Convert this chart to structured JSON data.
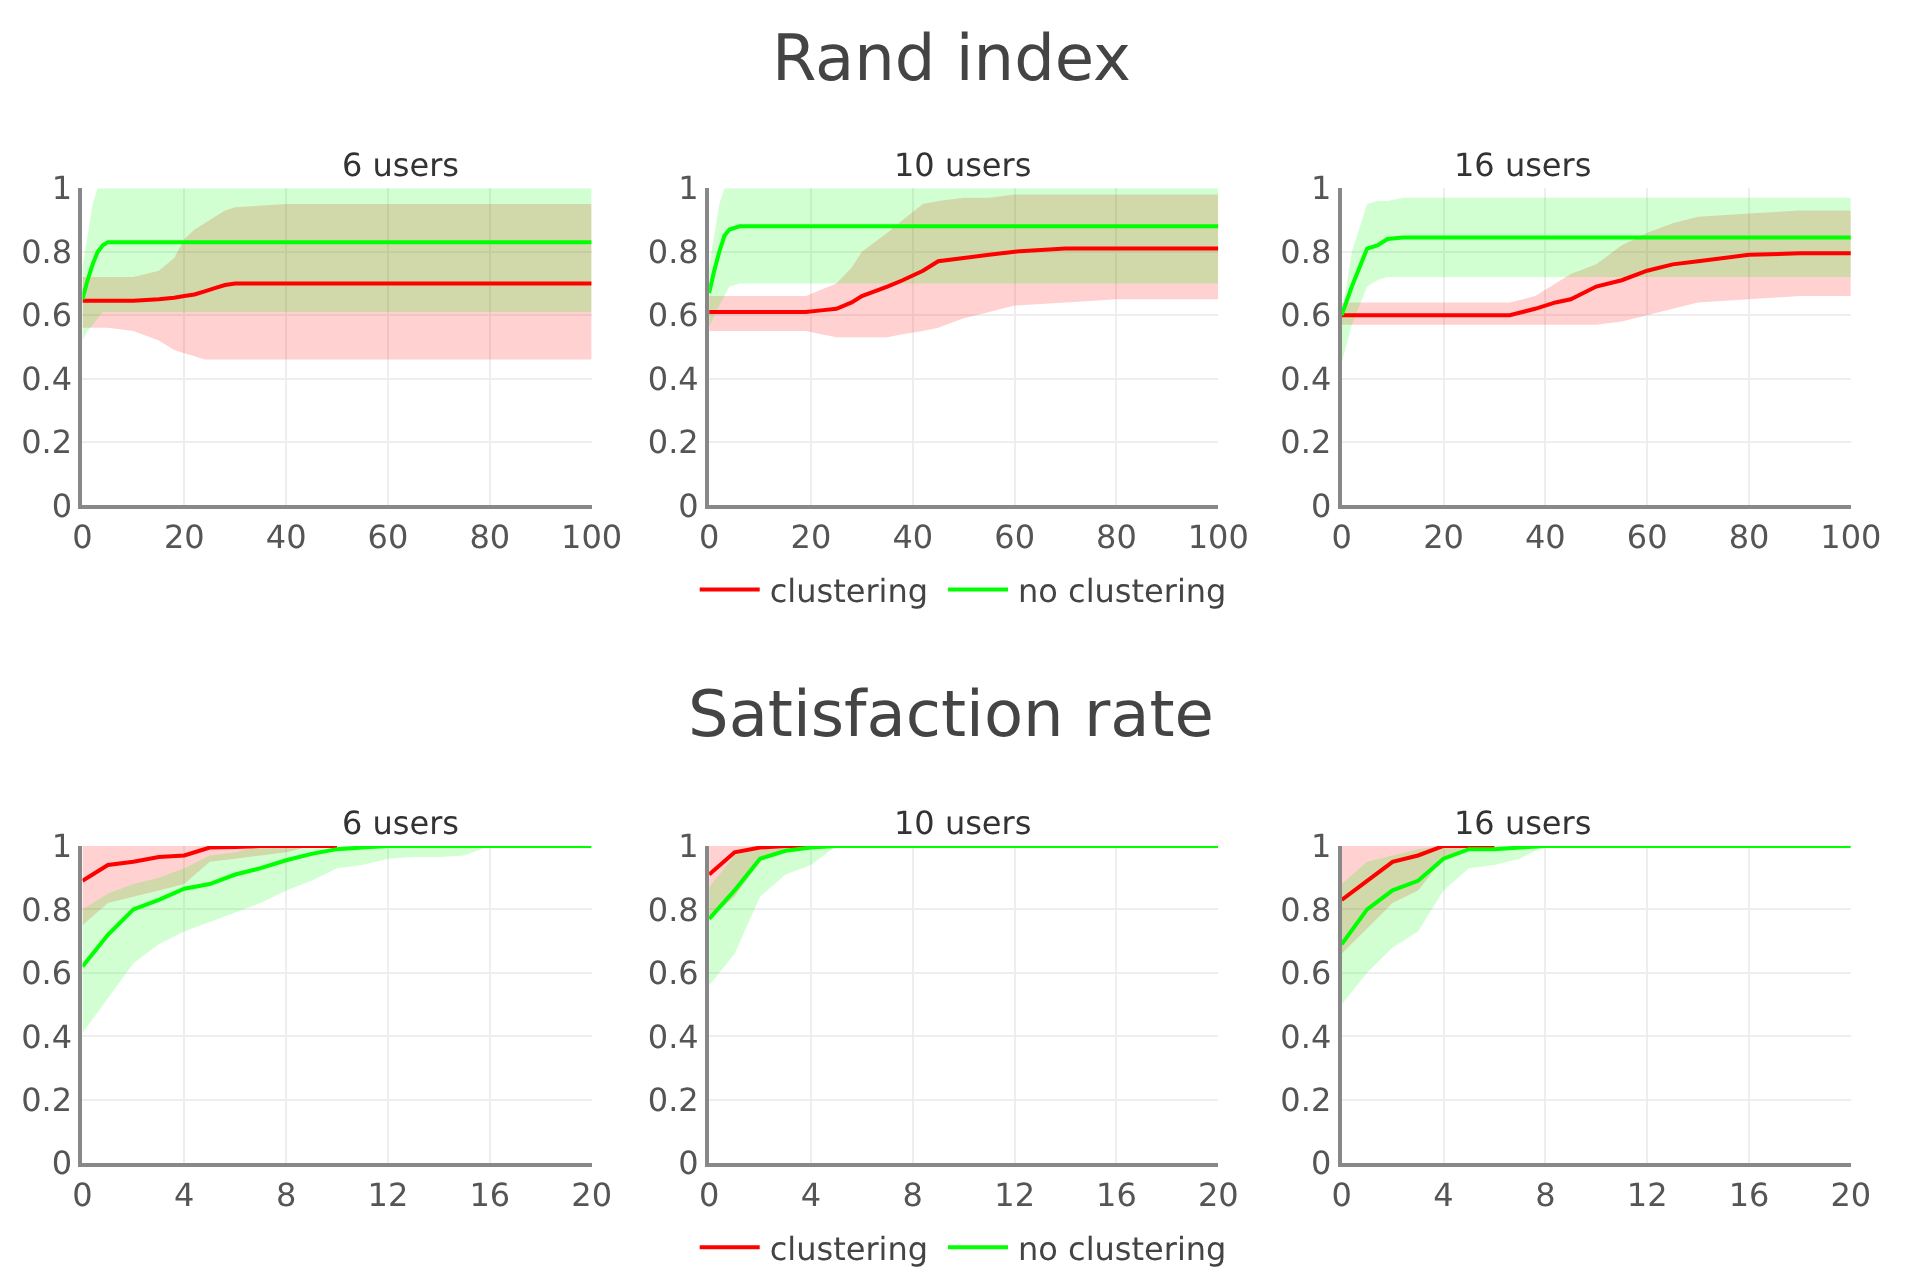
{
  "chart_data": [
    {
      "type": "line",
      "title": "6 users",
      "annotations": [
        "Rand index"
      ],
      "xlim": [
        0,
        100
      ],
      "xticks": [
        0,
        20,
        40,
        60,
        80,
        100
      ],
      "ylim": [
        0,
        1
      ],
      "yticks": [
        0,
        0.2,
        0.4,
        0.6,
        0.8,
        1
      ],
      "grid": true,
      "series": [
        {
          "color": "#ff0000",
          "x": [
            0,
            5,
            10,
            15,
            18,
            20,
            22,
            24,
            26,
            28,
            30,
            40,
            100
          ],
          "values": [
            0.645,
            0.645,
            0.645,
            0.65,
            0.655,
            0.66,
            0.665,
            0.675,
            0.685,
            0.695,
            0.7,
            0.7,
            0.7
          ],
          "lower": [
            0.56,
            0.56,
            0.55,
            0.52,
            0.49,
            0.48,
            0.47,
            0.46,
            0.46,
            0.46,
            0.46,
            0.46,
            0.46
          ],
          "upper": [
            0.72,
            0.72,
            0.72,
            0.74,
            0.78,
            0.84,
            0.87,
            0.89,
            0.91,
            0.93,
            0.94,
            0.95,
            0.95
          ]
        },
        {
          "color": "#00ff00",
          "x": [
            0,
            1,
            2,
            3,
            4,
            5,
            10,
            20,
            100
          ],
          "values": [
            0.65,
            0.71,
            0.76,
            0.8,
            0.82,
            0.83,
            0.83,
            0.83,
            0.83
          ],
          "lower": [
            0.52,
            0.55,
            0.57,
            0.59,
            0.61,
            0.61,
            0.61,
            0.61,
            0.61
          ],
          "upper": [
            0.75,
            0.85,
            0.95,
            1,
            1,
            1,
            1,
            1,
            1
          ]
        }
      ]
    },
    {
      "type": "line",
      "title": "10 users",
      "legend": "bottom",
      "xlim": [
        0,
        100
      ],
      "xticks": [
        0,
        20,
        40,
        60,
        80,
        100
      ],
      "ylim": [
        0,
        1
      ],
      "yticks": [
        0,
        0.2,
        0.4,
        0.6,
        0.8,
        1
      ],
      "grid": true,
      "series": [
        {
          "name": "clustering",
          "color": "#ff0000",
          "x": [
            0,
            10,
            19,
            22,
            25,
            28,
            30,
            35,
            38,
            42,
            45,
            50,
            55,
            60,
            70,
            80,
            100
          ],
          "values": [
            0.61,
            0.61,
            0.61,
            0.615,
            0.62,
            0.64,
            0.66,
            0.69,
            0.71,
            0.74,
            0.77,
            0.78,
            0.79,
            0.8,
            0.81,
            0.81,
            0.81
          ],
          "lower": [
            0.55,
            0.55,
            0.55,
            0.54,
            0.53,
            0.53,
            0.53,
            0.53,
            0.54,
            0.55,
            0.56,
            0.59,
            0.61,
            0.63,
            0.64,
            0.65,
            0.65
          ],
          "upper": [
            0.66,
            0.66,
            0.66,
            0.68,
            0.7,
            0.75,
            0.8,
            0.86,
            0.9,
            0.95,
            0.96,
            0.97,
            0.97,
            0.98,
            0.98,
            0.98,
            0.98
          ]
        },
        {
          "name": "no clustering",
          "color": "#00ff00",
          "x": [
            0,
            1,
            2,
            3,
            4,
            6,
            10,
            100
          ],
          "values": [
            0.67,
            0.74,
            0.8,
            0.85,
            0.87,
            0.88,
            0.88,
            0.88
          ],
          "lower": [
            0.56,
            0.6,
            0.63,
            0.66,
            0.69,
            0.7,
            0.7,
            0.7
          ],
          "upper": [
            0.75,
            0.85,
            0.95,
            1,
            1,
            1,
            1,
            1
          ]
        }
      ]
    },
    {
      "type": "line",
      "title": "16 users",
      "xlim": [
        0,
        100
      ],
      "xticks": [
        0,
        20,
        40,
        60,
        80,
        100
      ],
      "ylim": [
        0,
        1
      ],
      "yticks": [
        0,
        0.2,
        0.4,
        0.6,
        0.8,
        1
      ],
      "grid": true,
      "series": [
        {
          "color": "#ff0000",
          "x": [
            0,
            20,
            33,
            38,
            42,
            45,
            50,
            55,
            60,
            65,
            70,
            80,
            90,
            100
          ],
          "values": [
            0.6,
            0.6,
            0.6,
            0.62,
            0.64,
            0.65,
            0.69,
            0.71,
            0.74,
            0.76,
            0.77,
            0.79,
            0.795,
            0.795
          ],
          "lower": [
            0.57,
            0.57,
            0.57,
            0.57,
            0.57,
            0.57,
            0.57,
            0.58,
            0.6,
            0.62,
            0.64,
            0.65,
            0.66,
            0.66
          ],
          "upper": [
            0.64,
            0.64,
            0.64,
            0.66,
            0.7,
            0.73,
            0.76,
            0.82,
            0.86,
            0.89,
            0.91,
            0.92,
            0.93,
            0.93
          ]
        },
        {
          "color": "#00ff00",
          "x": [
            0,
            2,
            4,
            5,
            7,
            9,
            12,
            100
          ],
          "values": [
            0.6,
            0.69,
            0.77,
            0.81,
            0.82,
            0.84,
            0.845,
            0.845
          ],
          "lower": [
            0.45,
            0.57,
            0.65,
            0.69,
            0.71,
            0.72,
            0.72,
            0.72
          ],
          "upper": [
            0.6,
            0.8,
            0.9,
            0.95,
            0.96,
            0.96,
            0.97,
            0.97
          ]
        }
      ]
    },
    {
      "type": "line",
      "title": "6 users",
      "annotations": [
        "Satisfaction rate"
      ],
      "xlim": [
        0,
        20
      ],
      "xticks": [
        0,
        4,
        8,
        12,
        16,
        20
      ],
      "ylim": [
        0,
        1
      ],
      "yticks": [
        0,
        0.2,
        0.4,
        0.6,
        0.8,
        1
      ],
      "grid": true,
      "x": [
        0,
        1,
        2,
        3,
        4,
        5,
        6,
        7,
        8,
        9,
        10,
        11,
        12,
        13,
        14,
        15,
        16,
        17,
        18,
        19,
        20
      ],
      "series": [
        {
          "color": "#ff0000",
          "values": [
            0.89,
            0.94,
            0.95,
            0.965,
            0.97,
            0.995,
            0.997,
            1,
            1,
            1,
            1,
            null,
            null,
            null,
            null,
            null,
            null,
            null,
            null,
            null,
            null
          ],
          "lower": [
            0.75,
            0.82,
            0.84,
            0.86,
            0.88,
            0.95,
            0.96,
            0.97,
            0.98,
            1,
            1,
            1,
            1,
            1,
            1,
            1,
            1,
            1,
            1,
            1,
            1
          ],
          "upper": [
            1,
            1,
            1,
            1,
            1,
            1,
            1,
            1,
            1,
            1,
            1,
            1,
            1,
            1,
            1,
            1,
            1,
            1,
            1,
            1,
            1
          ]
        },
        {
          "color": "#00ff00",
          "values": [
            0.62,
            0.72,
            0.8,
            0.83,
            0.865,
            0.88,
            0.91,
            0.93,
            0.955,
            0.975,
            0.99,
            0.995,
            1,
            1,
            1,
            1,
            1,
            1,
            1,
            1,
            1
          ],
          "lower": [
            0.41,
            0.52,
            0.63,
            0.69,
            0.73,
            0.76,
            0.79,
            0.82,
            0.86,
            0.89,
            0.93,
            0.94,
            0.96,
            0.965,
            0.965,
            0.97,
            1,
            1,
            1,
            1,
            1
          ],
          "upper": [
            0.8,
            0.85,
            0.88,
            0.9,
            0.93,
            0.97,
            0.98,
            1,
            1,
            1,
            1,
            1,
            1,
            1,
            1,
            1,
            1,
            1,
            1,
            1,
            1
          ]
        }
      ]
    },
    {
      "type": "line",
      "title": "10 users",
      "legend": "bottom",
      "xlim": [
        0,
        20
      ],
      "xticks": [
        0,
        4,
        8,
        12,
        16,
        20
      ],
      "ylim": [
        0,
        1
      ],
      "yticks": [
        0,
        0.2,
        0.4,
        0.6,
        0.8,
        1
      ],
      "grid": true,
      "x": [
        0,
        1,
        2,
        3,
        4,
        5,
        6,
        7,
        8,
        9,
        10,
        11,
        12,
        13,
        14,
        15,
        16,
        17,
        18,
        19,
        20
      ],
      "series": [
        {
          "name": "clustering",
          "color": "#ff0000",
          "values": [
            0.91,
            0.98,
            0.995,
            1,
            1,
            null,
            null,
            null,
            null,
            null,
            null,
            null,
            null,
            null,
            null,
            null,
            null,
            null,
            null,
            null,
            null
          ],
          "lower": [
            0.77,
            0.84,
            0.95,
            0.99,
            1,
            1,
            1,
            1,
            1,
            1,
            1,
            1,
            1,
            1,
            1,
            1,
            1,
            1,
            1,
            1,
            1
          ],
          "upper": [
            1,
            1,
            1,
            1,
            1,
            1,
            1,
            1,
            1,
            1,
            1,
            1,
            1,
            1,
            1,
            1,
            1,
            1,
            1,
            1,
            1
          ]
        },
        {
          "name": "no clustering",
          "color": "#00ff00",
          "values": [
            0.77,
            0.86,
            0.96,
            0.985,
            0.995,
            1,
            1,
            1,
            1,
            1,
            1,
            1,
            1,
            1,
            1,
            1,
            1,
            1,
            1,
            1,
            1
          ],
          "lower": [
            0.56,
            0.66,
            0.84,
            0.91,
            0.94,
            1,
            1,
            1,
            1,
            1,
            1,
            1,
            1,
            1,
            1,
            1,
            1,
            1,
            1,
            1,
            1
          ],
          "upper": [
            0.87,
            0.97,
            1,
            1,
            1,
            1,
            1,
            1,
            1,
            1,
            1,
            1,
            1,
            1,
            1,
            1,
            1,
            1,
            1,
            1,
            1
          ]
        }
      ]
    },
    {
      "type": "line",
      "title": "16 users",
      "xlim": [
        0,
        20
      ],
      "xticks": [
        0,
        4,
        8,
        12,
        16,
        20
      ],
      "ylim": [
        0,
        1
      ],
      "yticks": [
        0,
        0.2,
        0.4,
        0.6,
        0.8,
        1
      ],
      "grid": true,
      "x": [
        0,
        1,
        2,
        3,
        4,
        5,
        6,
        7,
        8,
        9,
        10,
        11,
        12,
        13,
        14,
        15,
        16,
        17,
        18,
        19,
        20
      ],
      "series": [
        {
          "color": "#ff0000",
          "values": [
            0.83,
            0.89,
            0.95,
            0.97,
            1,
            1,
            1,
            null,
            null,
            null,
            null,
            null,
            null,
            null,
            null,
            null,
            null,
            null,
            null,
            null,
            null
          ],
          "lower": [
            0.66,
            0.74,
            0.82,
            0.86,
            0.96,
            1,
            1,
            1,
            1,
            1,
            1,
            1,
            1,
            1,
            1,
            1,
            1,
            1,
            1,
            1,
            1
          ],
          "upper": [
            1,
            1,
            1,
            1,
            1,
            1,
            1,
            1,
            1,
            1,
            1,
            1,
            1,
            1,
            1,
            1,
            1,
            1,
            1,
            1,
            1
          ]
        },
        {
          "color": "#00ff00",
          "values": [
            0.69,
            0.8,
            0.86,
            0.89,
            0.96,
            0.99,
            0.99,
            0.995,
            1,
            1,
            1,
            1,
            1,
            1,
            1,
            1,
            1,
            1,
            1,
            1,
            1
          ],
          "lower": [
            0.5,
            0.6,
            0.68,
            0.73,
            0.86,
            0.93,
            0.94,
            0.96,
            1,
            1,
            1,
            1,
            1,
            1,
            1,
            1,
            1,
            1,
            1,
            1,
            1
          ],
          "upper": [
            0.88,
            0.95,
            0.97,
            0.99,
            1,
            1,
            1,
            1,
            1,
            1,
            1,
            1,
            1,
            1,
            1,
            1,
            1,
            1,
            1,
            1,
            1
          ]
        }
      ]
    }
  ]
}
